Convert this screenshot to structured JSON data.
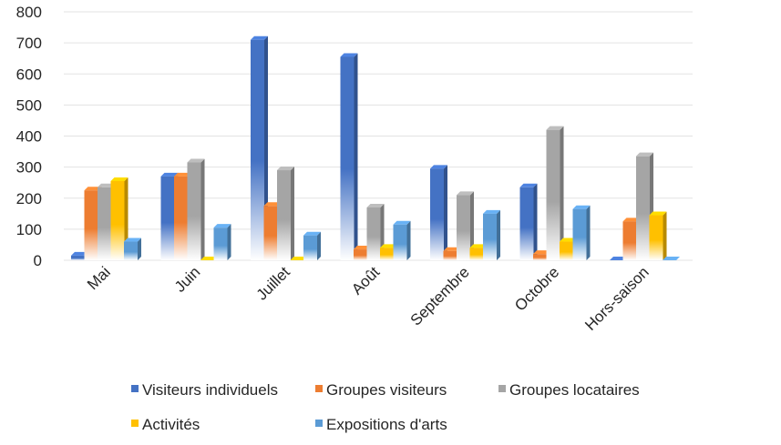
{
  "chart_data": {
    "type": "bar",
    "title": "",
    "xlabel": "",
    "ylabel": "",
    "ylim": [
      0,
      800
    ],
    "yticks": [
      0,
      100,
      200,
      300,
      400,
      500,
      600,
      700,
      800
    ],
    "grid": true,
    "legend_position": "bottom",
    "categories": [
      "Mai",
      "Juin",
      "Juillet",
      "Août",
      "Septembre",
      "Octobre",
      "Hors-saison"
    ],
    "series": [
      {
        "name": "Visiteurs individuels",
        "color": "#4472C4",
        "values": [
          15,
          270,
          710,
          655,
          295,
          235,
          0
        ]
      },
      {
        "name": "Groupes visiteurs",
        "color": "#ED7D31",
        "values": [
          225,
          270,
          175,
          35,
          30,
          20,
          125
        ]
      },
      {
        "name": "Groupes locataires",
        "color": "#A5A5A5",
        "values": [
          235,
          315,
          290,
          170,
          210,
          420,
          335
        ]
      },
      {
        "name": "Activités",
        "color": "#FFC000",
        "values": [
          255,
          0,
          0,
          40,
          40,
          60,
          145
        ]
      },
      {
        "name": "Expositions d'arts",
        "color": "#5B9BD5",
        "values": [
          60,
          105,
          80,
          115,
          150,
          165,
          0
        ]
      }
    ]
  }
}
